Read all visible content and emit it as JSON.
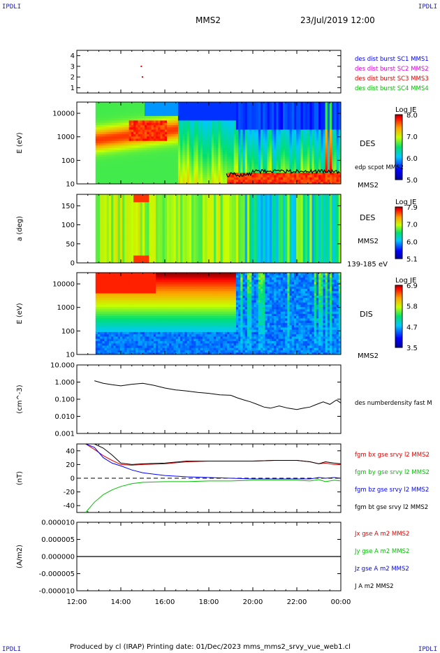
{
  "corner_label": "IPDLI",
  "header": {
    "spacecraft": "MMS2",
    "datetime": "23/Jul/2019 12:00"
  },
  "footer": {
    "text": "Produced by cl (IRAP)   Printing date: 01/Dec/2023   mms_mms2_srvy_vue_web1.cl"
  },
  "colors": {
    "red": "#e00000",
    "green": "#00c000",
    "blue": "#0000ff",
    "magenta": "#e000e0",
    "black": "#000000",
    "corner": "#1a1ab4"
  },
  "chart_data": [
    {
      "type": "scatter",
      "panel": "burst",
      "y_ticks": [
        "4",
        "3",
        "2",
        "1"
      ],
      "ylim": [
        0.5,
        4.5
      ],
      "legend": [
        {
          "label": "des dist burst SC1 MMS1",
          "color": "#0000ff"
        },
        {
          "label": "des dist burst SC2 MMS2",
          "color": "#e000e0"
        },
        {
          "label": "des dist burst SC3 MMS3",
          "color": "#e00000"
        },
        {
          "label": "des dist burst SC4 MMS4",
          "color": "#00c000"
        }
      ],
      "points": [
        {
          "x": 14.9,
          "y": 3.0,
          "color": "#e00000"
        },
        {
          "x": 14.95,
          "y": 2.0,
          "color": "#e00000"
        }
      ]
    },
    {
      "type": "heatmap",
      "panel": "des_energy",
      "ylabel": "E (eV)",
      "y_ticks": [
        "10000",
        "1000",
        "100",
        "10"
      ],
      "scale": "log",
      "ylim": [
        10,
        30000
      ],
      "label": "DES",
      "overlay_label": "edp scpot MMS2",
      "sc_label": "MMS2",
      "colorbar": {
        "title": "Log JE",
        "ticks": [
          "8.0",
          "7.0",
          "6.0",
          "5.0"
        ],
        "range": [
          5.0,
          8.2
        ]
      }
    },
    {
      "type": "heatmap",
      "panel": "des_pitch",
      "ylabel": "a (deg)",
      "y_ticks": [
        "150",
        "100",
        "50",
        "0"
      ],
      "ylim": [
        0,
        180
      ],
      "label": "DES",
      "sc_label": "MMS2",
      "energy_range": "139-185 eV",
      "colorbar": {
        "title": "Log JE",
        "ticks": [
          "7.9",
          "7.0",
          "6.0",
          "5.1"
        ],
        "range": [
          5.1,
          7.9
        ]
      }
    },
    {
      "type": "heatmap",
      "panel": "dis_energy",
      "ylabel": "E (eV)",
      "y_ticks": [
        "10000",
        "1000",
        "100",
        "10"
      ],
      "scale": "log",
      "ylim": [
        10,
        30000
      ],
      "label": "DIS",
      "sc_label": "MMS2",
      "colorbar": {
        "title": "Log JE",
        "ticks": [
          "6.9",
          "5.8",
          "4.7",
          "3.5"
        ],
        "range": [
          3.5,
          6.9
        ]
      }
    },
    {
      "type": "line",
      "panel": "density",
      "ylabel": "(cm^-3)",
      "y_ticks": [
        "10.000",
        "1.000",
        "0.100",
        "0.010",
        "0.001"
      ],
      "scale": "log",
      "ylim": [
        0.001,
        10
      ],
      "legend": [
        {
          "label": "des numberdensity fast M",
          "color": "#000000"
        }
      ],
      "series": [
        {
          "color": "#000000",
          "x": [
            12.8,
            13.2,
            13.6,
            14.0,
            14.5,
            15.0,
            15.5,
            16.0,
            16.5,
            17.0,
            17.5,
            18.0,
            18.5,
            19.0,
            19.3,
            19.6,
            19.9,
            20.2,
            20.5,
            20.8,
            21.2,
            21.6,
            22.0,
            22.3,
            22.6,
            22.9,
            23.2,
            23.5,
            23.8,
            24.0
          ],
          "y": [
            1.2,
            0.85,
            0.7,
            0.6,
            0.75,
            0.85,
            0.65,
            0.45,
            0.35,
            0.3,
            0.25,
            0.22,
            0.18,
            0.17,
            0.12,
            0.09,
            0.07,
            0.05,
            0.035,
            0.03,
            0.04,
            0.03,
            0.025,
            0.03,
            0.035,
            0.05,
            0.07,
            0.05,
            0.09,
            0.06
          ]
        }
      ]
    },
    {
      "type": "line",
      "panel": "magnetic_field",
      "ylabel": "(nT)",
      "y_ticks": [
        "40",
        "20",
        "0",
        "-20",
        "-40"
      ],
      "ylim": [
        -50,
        50
      ],
      "legend": [
        {
          "label": "fgm bx gse srvy l2 MMS2",
          "color": "#e00000"
        },
        {
          "label": "fgm by gse srvy l2 MMS2",
          "color": "#00c000"
        },
        {
          "label": "fgm bz gse srvy l2 MMS2",
          "color": "#0000ff"
        },
        {
          "label": "fgm bt gse srvy l2 MMS2",
          "color": "#000000"
        }
      ],
      "x": [
        12.4,
        12.8,
        13.2,
        13.6,
        14.0,
        14.5,
        15.0,
        16.0,
        17.0,
        18.0,
        19.0,
        20.0,
        21.0,
        22.0,
        22.6,
        23.0,
        23.3,
        23.7,
        24.0
      ],
      "series": [
        {
          "color": "#e00000",
          "y": [
            50,
            42,
            33,
            26,
            20,
            19,
            20,
            21,
            24,
            25,
            25,
            25,
            26,
            26,
            24,
            21,
            22,
            20,
            20
          ]
        },
        {
          "color": "#00c000",
          "y": [
            -50,
            -35,
            -24,
            -17,
            -12,
            -8,
            -6,
            -5,
            -5,
            -4,
            -4,
            -3,
            -3,
            -3,
            -4,
            -2,
            -5,
            -3,
            -4
          ]
        },
        {
          "color": "#0000ff",
          "y": [
            50,
            45,
            30,
            22,
            18,
            12,
            8,
            4,
            2,
            1,
            0,
            -1,
            -1,
            -1,
            -1,
            1,
            0,
            1,
            0
          ]
        },
        {
          "color": "#000000",
          "y": [
            50,
            50,
            44,
            34,
            22,
            20,
            21,
            22,
            25,
            25,
            25,
            25,
            26,
            26,
            24,
            21,
            24,
            22,
            21
          ]
        }
      ]
    },
    {
      "type": "line",
      "panel": "current_density",
      "ylabel": "(A/m2)",
      "y_ticks": [
        "0.000010",
        "0.000005",
        "0.000000",
        "-0.000005",
        "-0.000010"
      ],
      "ylim": [
        -1e-05,
        1e-05
      ],
      "legend": [
        {
          "label": "Jx gse A m2 MMS2",
          "color": "#e00000"
        },
        {
          "label": "Jy gse A m2 MMS2",
          "color": "#00c000"
        },
        {
          "label": "Jz gse A m2 MMS2",
          "color": "#0000ff"
        },
        {
          "label": "J A m2 MMS2",
          "color": "#000000"
        }
      ],
      "series": [
        {
          "color": "#000000",
          "x": [
            12.0,
            24.0
          ],
          "y": [
            0,
            0
          ]
        }
      ]
    }
  ],
  "x_axis": {
    "ticks": [
      "12:00",
      "14:00",
      "16:00",
      "18:00",
      "20:00",
      "22:00",
      "00:00"
    ],
    "values": [
      12,
      14,
      16,
      18,
      20,
      22,
      24
    ]
  }
}
